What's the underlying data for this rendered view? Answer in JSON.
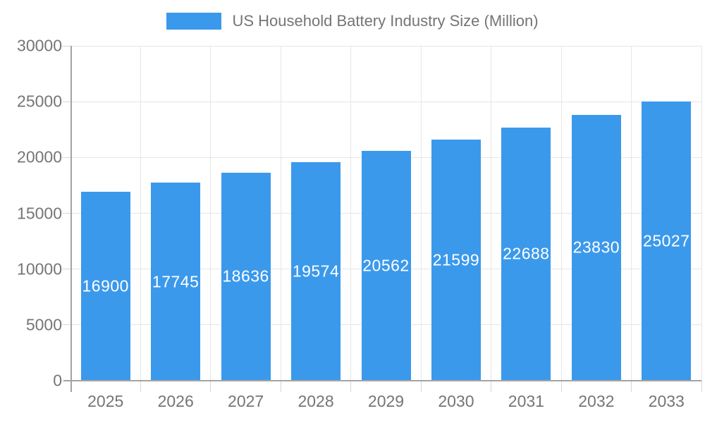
{
  "chart_data": {
    "type": "bar",
    "title": "US Household Battery Industry Size (Million)",
    "categories": [
      "2025",
      "2026",
      "2027",
      "2028",
      "2029",
      "2030",
      "2031",
      "2032",
      "2033"
    ],
    "values": [
      16900,
      17745,
      18636,
      19574,
      20562,
      21599,
      22688,
      23830,
      25027
    ],
    "xlabel": "",
    "ylabel": "",
    "ylim": [
      0,
      30000
    ],
    "ytick_step": 5000,
    "ytick_labels": [
      "0",
      "5000",
      "10000",
      "15000",
      "20000",
      "25000",
      "30000"
    ],
    "grid": true,
    "legend_position": "top",
    "bar_value_labels_inside": true
  },
  "colors": {
    "bar": "#3b99ec",
    "bar_label": "#ffffff",
    "grid": "#e6e6e6",
    "axis": "#a3a3a3",
    "tick": "#d6d6d6",
    "text": "#757575",
    "background": "#ffffff"
  }
}
